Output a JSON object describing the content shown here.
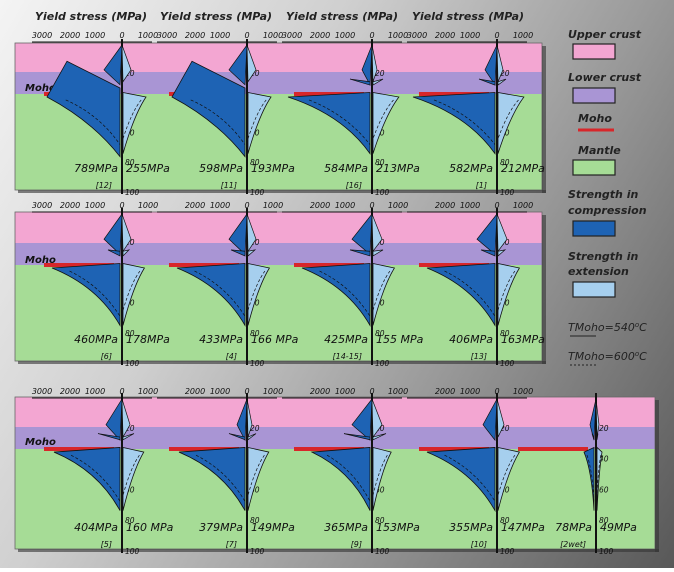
{
  "colors": {
    "upper_crust": "#f3a6d2",
    "lower_crust": "#a995d4",
    "mantle": "#a6dc96",
    "moho": "#d8262a",
    "compression": "#1e63b4",
    "extension": "#a6cfee"
  },
  "top_labels": [
    "Yield stress (MPa)",
    "Yield stress (MPa)",
    "Yield stress (MPa)",
    "Yield stress (MPa)"
  ],
  "scale_ticks": [
    "3000",
    "2000",
    "1000",
    "0",
    "1000"
  ],
  "depth_ticks": [
    "20",
    "40",
    "60",
    "80",
    "100"
  ],
  "moho_label": "Moho",
  "legend": {
    "upper_crust": "Upper crust",
    "lower_crust": "Lower crust",
    "moho": "Moho",
    "mantle": "Mantle",
    "compression": "Strength in compression",
    "extension": "Strength in extension",
    "tmoho_540": "TMoho=540oC",
    "tmoho_600": "TMoho=600oC"
  },
  "rows": [
    {
      "profiles": [
        {
          "compression": "789MPa",
          "extension": "255MPa",
          "ref": "[12]"
        },
        {
          "compression": "598MPa",
          "extension": "193MPa",
          "ref": "[11]"
        },
        {
          "compression": "584MPa",
          "extension": "213MPa",
          "ref": "[16]"
        },
        {
          "compression": "582MPa",
          "extension": "212MPa",
          "ref": "[1]"
        }
      ]
    },
    {
      "profiles": [
        {
          "compression": "460MPa",
          "extension": "178MPa",
          "ref": "[6]"
        },
        {
          "compression": "433MPa",
          "extension": "166 MPa",
          "ref": "[4]"
        },
        {
          "compression": "425MPa",
          "extension": "155 MPa",
          "ref": "[14-15]"
        },
        {
          "compression": "406MPa",
          "extension": "163MPa",
          "ref": "[13]"
        }
      ]
    },
    {
      "profiles": [
        {
          "compression": "404MPa",
          "extension": "160 MPa",
          "ref": "[5]"
        },
        {
          "compression": "379MPa",
          "extension": "149MPa",
          "ref": "[7]"
        },
        {
          "compression": "365MPa",
          "extension": "153MPa",
          "ref": "[9]"
        },
        {
          "compression": "355MPa",
          "extension": "147MPa",
          "ref": "[10]"
        },
        {
          "compression": "78MPa",
          "extension": "49MPa",
          "ref": "[2wet]"
        }
      ]
    }
  ]
}
